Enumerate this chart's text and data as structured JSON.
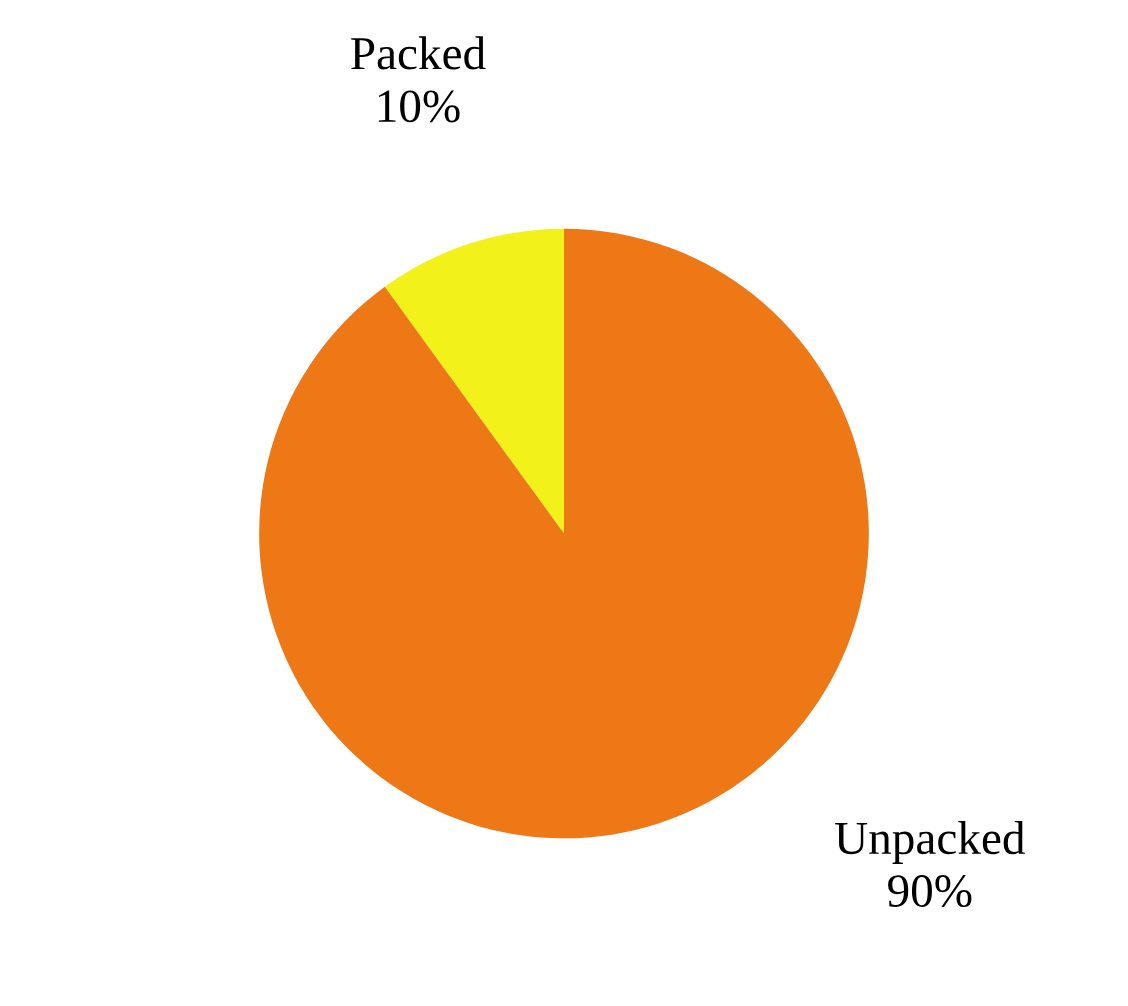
{
  "chart_data": {
    "type": "pie",
    "categories": [
      "Packed",
      "Unpacked"
    ],
    "values": [
      10,
      90
    ],
    "value_labels": [
      "10%",
      "90%"
    ],
    "colors": [
      "#f2f21a",
      "#ee7716"
    ]
  }
}
